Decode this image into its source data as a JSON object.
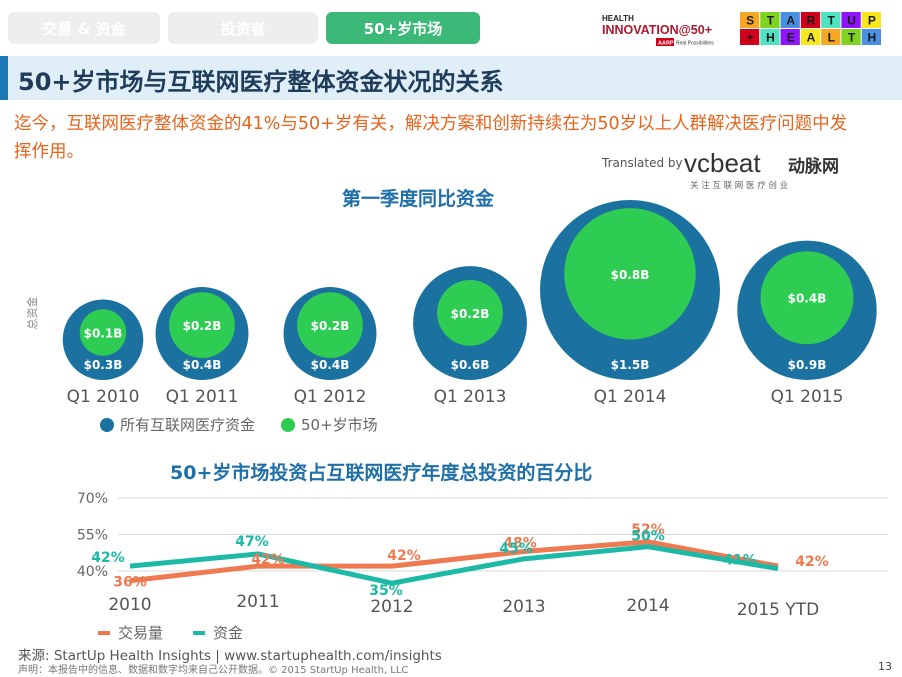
{
  "tabs": [
    {
      "label": "交易 & 资金",
      "active": false
    },
    {
      "label": "投资者",
      "active": false
    },
    {
      "label": "50+岁市场",
      "active": true
    }
  ],
  "logos": {
    "health_innovation": {
      "top": "HEALTH",
      "main": "INNOVATION@50+",
      "sub_badge": "AARP",
      "sub": "Real Possibilities"
    },
    "startup_health": {
      "line1": "STARTUP",
      "line2": "+HEALTH"
    },
    "vcbeat": {
      "main": "vcbeat",
      "cn": "动脉网",
      "tagline": "关 注 互 联 网 医 疗 创 业"
    }
  },
  "title": "50+岁市场与互联网医疗整体资金状况的关系",
  "intro": "迄今，互联网医疗整体资金的41%与50+岁有关，解决方案和创新持续在为50岁以上人群解决医疗问题中发挥作用。",
  "translated_by": "Translated by",
  "colors": {
    "tab_active": "#3cb878",
    "tab_inactive": "#eeeeee",
    "outer_bubble": "#1b72a0",
    "inner_bubble": "#2ecc52",
    "deals_line": "#ef7a52",
    "funding_line": "#1cbaa6",
    "intro_text": "#e8631c",
    "section_title": "#1f6fa8"
  },
  "chart_data": [
    {
      "type": "bubble",
      "title": "第一季度同比资金",
      "ylabel": "总资金",
      "categories": [
        "Q1 2010",
        "Q1 2011",
        "Q1 2012",
        "Q1 2013",
        "Q1 2014",
        "Q1 2015"
      ],
      "series": [
        {
          "name": "所有互联网医疗资金",
          "values": [
            0.3,
            0.4,
            0.4,
            0.6,
            1.5,
            0.9
          ],
          "labels": [
            "$0.3B",
            "$0.4B",
            "$0.4B",
            "$0.6B",
            "$1.5B",
            "$0.9B"
          ]
        },
        {
          "name": "50+岁市场",
          "values": [
            0.1,
            0.2,
            0.2,
            0.2,
            0.8,
            0.4
          ],
          "labels": [
            "$0.1B",
            "$0.2B",
            "$0.2B",
            "$0.2B",
            "$0.8B",
            "$0.4B"
          ]
        }
      ],
      "legend": "bottom-left"
    },
    {
      "type": "line",
      "title": "50+岁市场投资占互联网医疗年度总投资的百分比",
      "categories": [
        "2010",
        "2011",
        "2012",
        "2013",
        "2014",
        "2015 YTD"
      ],
      "yticks": [
        "70%",
        "55%",
        "40%"
      ],
      "ylim": [
        30,
        70
      ],
      "grid": true,
      "series": [
        {
          "name": "交易量",
          "values": [
            36,
            42,
            42,
            48,
            52,
            42
          ],
          "labels": [
            "36%",
            "42%",
            "42%",
            "48%",
            "52%",
            "42%"
          ]
        },
        {
          "name": "资金",
          "values": [
            42,
            47,
            35,
            45,
            50,
            41
          ],
          "labels": [
            "42%",
            "47%",
            "35%",
            "45%",
            "50%",
            "41%"
          ]
        }
      ],
      "legend": "bottom-left"
    }
  ],
  "footer": {
    "source": "来源: StartUp Health Insights | www.startuphealth.com/insights",
    "disclaimer": "声明：本报告中的信息、数据和数字均来自己公开数据。© 2015 StartUp Health, LLC",
    "page": "13"
  }
}
